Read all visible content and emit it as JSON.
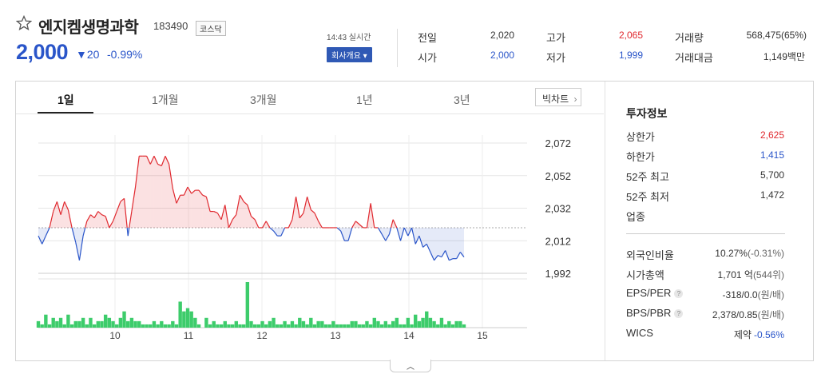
{
  "stock": {
    "name": "엔지켐생명과학",
    "code": "183490",
    "market": "코스닥",
    "price": "2,000",
    "change": "▼20",
    "change_pct": "-0.99%"
  },
  "status": {
    "time": "14:43 실시간",
    "company_btn": "회사개요 ▾"
  },
  "summary": [
    {
      "label": "전일",
      "value": "2,020",
      "color": "dark"
    },
    {
      "label": "고가",
      "value": "2,065",
      "color": "red"
    },
    {
      "label": "거래량",
      "value": "568,475(65%)",
      "color": "dark"
    },
    {
      "label": "시가",
      "value": "2,000",
      "color": "blue"
    },
    {
      "label": "저가",
      "value": "1,999",
      "color": "blue"
    },
    {
      "label": "거래대금",
      "value": "1,149백만",
      "color": "dark"
    }
  ],
  "tabs": [
    "1일",
    "1개월",
    "3개월",
    "1년",
    "3년"
  ],
  "big_chart_label": "빅차트",
  "invest": {
    "title": "투자정보",
    "items": [
      {
        "label": "상한가",
        "value": "2,625",
        "color": "#e0292f"
      },
      {
        "label": "하한가",
        "value": "1,415",
        "color": "#2a55c9"
      },
      {
        "label": "52주 최고",
        "value": "5,700",
        "color": "#333333"
      },
      {
        "label": "52주 최저",
        "value": "1,472",
        "color": "#333333"
      },
      {
        "label": "업종",
        "value": "",
        "color": "#333333"
      }
    ],
    "items2": [
      {
        "label": "외국인비율",
        "value": "10.27%",
        "sub": "(-0.31%)",
        "help": false
      },
      {
        "label": "시가총액",
        "value": "1,701 억",
        "sub": "(544위)",
        "help": false
      },
      {
        "label": "EPS/PER",
        "value": "-318/0.0",
        "sub": "(원/배)",
        "help": true
      },
      {
        "label": "BPS/PBR",
        "value": "2,378/0.85",
        "sub": "(원/배)",
        "help": true
      },
      {
        "label": "WICS",
        "value": "제약",
        "sub": "-0.56%",
        "help": false
      }
    ]
  },
  "colors": {
    "up": "#e0292f",
    "down": "#2a55c9",
    "volume": "#3dcc6b"
  },
  "chart_data": {
    "type": "line",
    "y_ticks": [
      "2,072",
      "2,052",
      "2,032",
      "2,012",
      "1,992"
    ],
    "ylim": [
      1992,
      2072
    ],
    "x_ticks": [
      "10",
      "11",
      "12",
      "13",
      "14",
      "15"
    ],
    "xlim": [
      9,
      15.5
    ],
    "baseline": 2020,
    "series": [
      {
        "values": [
          2015,
          2010,
          2015,
          2020,
          2030,
          2036,
          2028,
          2036,
          2031,
          2020,
          2011,
          2000,
          2015,
          2024,
          2028,
          2026,
          2030,
          2028,
          2027,
          2020,
          2024,
          2030,
          2036,
          2038,
          2015,
          2030,
          2045,
          2064,
          2064,
          2064,
          2059,
          2064,
          2059,
          2058,
          2064,
          2059,
          2044,
          2035,
          2040,
          2040,
          2045,
          2041,
          2043,
          2043,
          2040,
          2039,
          2030,
          2030,
          2029,
          2025,
          2034,
          2020,
          2025,
          2028,
          2040,
          2036,
          2034,
          2027,
          2025,
          2020,
          2020,
          2024,
          2020,
          2018,
          2015,
          2015,
          2020,
          2020,
          2025,
          2039,
          2026,
          2029,
          2039,
          2031,
          2029,
          2024,
          2020,
          2020,
          2020,
          2020,
          2020,
          2018,
          2012,
          2012,
          2020,
          2024,
          2022,
          2020,
          2020,
          2035,
          2020,
          2020,
          2016,
          2012,
          2016,
          2025,
          2020,
          2012,
          2020,
          2015,
          2020,
          2010,
          2015,
          2008,
          2010,
          2005,
          2000,
          2003,
          2002,
          2006,
          2000,
          2001,
          2001,
          2005,
          2002
        ]
      }
    ],
    "volume": [
      2,
      1,
      4,
      1,
      3,
      2,
      3,
      1,
      4,
      1,
      2,
      2,
      3,
      1,
      3,
      1,
      2,
      2,
      4,
      3,
      2,
      1,
      3,
      5,
      2,
      3,
      2,
      2,
      1,
      1,
      1,
      2,
      1,
      2,
      1,
      1,
      2,
      1,
      8,
      5,
      6,
      5,
      3,
      1,
      0,
      3,
      1,
      2,
      1,
      1,
      2,
      1,
      1,
      2,
      1,
      1,
      14,
      2,
      1,
      1,
      2,
      1,
      2,
      3,
      1,
      1,
      2,
      1,
      2,
      1,
      3,
      2,
      1,
      3,
      1,
      2,
      2,
      1,
      1,
      2,
      1,
      1,
      1,
      1,
      2,
      2,
      1,
      1,
      2,
      1,
      3,
      2,
      1,
      2,
      1,
      2,
      3,
      1,
      1,
      3,
      1,
      4,
      2,
      3,
      5,
      3,
      2,
      1,
      3,
      1,
      2,
      1,
      2,
      2,
      1
    ]
  }
}
